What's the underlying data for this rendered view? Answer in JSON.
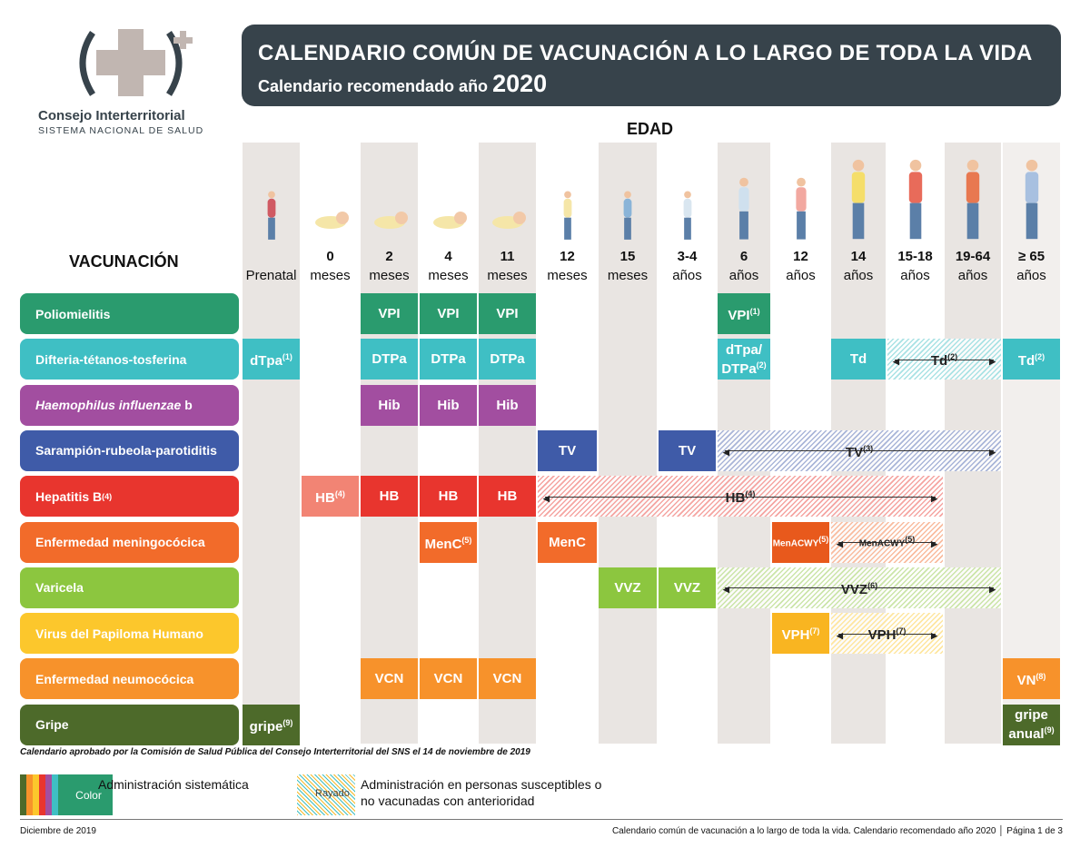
{
  "header": {
    "title": "CALENDARIO COMÚN DE VACUNACIÓN A LO LARGO DE TODA LA VIDA",
    "subtitle": "Calendario recomendado año",
    "year": "2020",
    "org_name": "Consejo Interterritorial",
    "org_sub": "SISTEMA NACIONAL DE SALUD"
  },
  "age_title": "EDAD",
  "vaccination_title": "VACUNACIÓN",
  "columns": [
    {
      "n": "",
      "u": "Prenatal"
    },
    {
      "n": "0",
      "u": "meses"
    },
    {
      "n": "2",
      "u": "meses"
    },
    {
      "n": "4",
      "u": "meses"
    },
    {
      "n": "11",
      "u": "meses"
    },
    {
      "n": "12",
      "u": "meses"
    },
    {
      "n": "15",
      "u": "meses"
    },
    {
      "n": "3-4",
      "u": "años"
    },
    {
      "n": "6",
      "u": "años"
    },
    {
      "n": "12",
      "u": "años"
    },
    {
      "n": "14",
      "u": "años"
    },
    {
      "n": "15-18",
      "u": "años"
    },
    {
      "n": "19-64",
      "u": "años"
    },
    {
      "n": "≥ 65",
      "u": "años"
    }
  ],
  "rows": [
    {
      "name": "Poliomielitis",
      "color": "#2a9b6e",
      "cells": [
        {
          "c": 2,
          "t": "VPI"
        },
        {
          "c": 3,
          "t": "VPI"
        },
        {
          "c": 4,
          "t": "VPI"
        },
        {
          "c": 8,
          "t": "VPI",
          "s": "(1)"
        }
      ]
    },
    {
      "name": "Difteria-tétanos-tosferina",
      "color": "#3fbfc4",
      "cells": [
        {
          "c": 0,
          "t": "dTpa",
          "s": "(1)"
        },
        {
          "c": 2,
          "t": "DTPa"
        },
        {
          "c": 3,
          "t": "DTPa"
        },
        {
          "c": 4,
          "t": "DTPa"
        },
        {
          "c": 8,
          "t": "dTpa/ DTPa",
          "s": "(2)"
        },
        {
          "c": 10,
          "t": "Td"
        },
        {
          "c": 11,
          "span": 2,
          "t": "Td",
          "s": "(2)",
          "striped": true
        },
        {
          "c": 13,
          "t": "Td",
          "s": "(2)"
        }
      ]
    },
    {
      "name": "Haemophilus influenzae",
      "name_suffix": "b",
      "italic": true,
      "color": "#a24ea0",
      "cells": [
        {
          "c": 2,
          "t": "Hib"
        },
        {
          "c": 3,
          "t": "Hib"
        },
        {
          "c": 4,
          "t": "Hib"
        }
      ]
    },
    {
      "name": "Sarampión-rubeola-parotiditis",
      "color": "#3f5ba8",
      "cells": [
        {
          "c": 5,
          "t": "TV"
        },
        {
          "c": 7,
          "t": "TV"
        },
        {
          "c": 8,
          "span": 5,
          "t": "TV",
          "s": "(3)",
          "striped": true
        }
      ]
    },
    {
      "name": "Hepatitis B",
      "name_sup": "(4)",
      "color": "#e8352e",
      "cells": [
        {
          "c": 1,
          "t": "HB",
          "s": "(4)",
          "color": "#f28474"
        },
        {
          "c": 2,
          "t": "HB"
        },
        {
          "c": 3,
          "t": "HB"
        },
        {
          "c": 4,
          "t": "HB"
        },
        {
          "c": 5,
          "span": 7,
          "t": "HB",
          "s": "(4)",
          "striped": true
        }
      ]
    },
    {
      "name": "Enfermedad meningocócica",
      "color": "#f26b2a",
      "cells": [
        {
          "c": 3,
          "t": "MenC",
          "s": "(5)"
        },
        {
          "c": 5,
          "t": "MenC"
        },
        {
          "c": 9,
          "t": "MenACWY",
          "s": "(5)",
          "small": true,
          "color": "#e8591c"
        },
        {
          "c": 10,
          "span": 2,
          "t": "MenACWY",
          "s": "(5)",
          "striped": true,
          "small": true
        }
      ]
    },
    {
      "name": "Varicela",
      "color": "#8cc63f",
      "cells": [
        {
          "c": 6,
          "t": "VVZ"
        },
        {
          "c": 7,
          "t": "VVZ"
        },
        {
          "c": 8,
          "span": 5,
          "t": "VVZ",
          "s": "(6)",
          "striped": true
        }
      ]
    },
    {
      "name": "Virus del Papiloma Humano",
      "color": "#fcc72c",
      "cells": [
        {
          "c": 9,
          "t": "VPH",
          "s": "(7)",
          "color": "#f9b521"
        },
        {
          "c": 10,
          "span": 2,
          "t": "VPH",
          "s": "(7)",
          "striped": true
        }
      ]
    },
    {
      "name": "Enfermedad neumocócica",
      "color": "#f7922b",
      "cells": [
        {
          "c": 2,
          "t": "VCN"
        },
        {
          "c": 3,
          "t": "VCN"
        },
        {
          "c": 4,
          "t": "VCN"
        },
        {
          "c": 13,
          "t": "VN",
          "s": "(8)"
        }
      ]
    },
    {
      "name": "Gripe",
      "color": "#4d6a2a",
      "cells": [
        {
          "c": 0,
          "t": "gripe",
          "s": "(9)"
        },
        {
          "c": 13,
          "t": "gripe anual",
          "s": "(9)"
        }
      ]
    }
  ],
  "approval_note": "Calendario aprobado por la Comisión de Salud Pública del Consejo Interterritorial del SNS el 14 de noviembre de 2019",
  "legend": {
    "color_label": "Color",
    "color_text": "Administración sistemática",
    "striped_label": "Rayado",
    "striped_text_1": "Administración en personas susceptibles o",
    "striped_text_2": "no vacunadas con anterioridad",
    "color_swatches": [
      "#4d6a2a",
      "#f7922b",
      "#fcc72c",
      "#e8352e",
      "#a24ea0",
      "#3fbfc4",
      "#2a9b6e"
    ]
  },
  "footer": {
    "date": "Diciembre de 2019",
    "doc": "Calendario común de vacunación a lo largo de toda la vida. Calendario recomendado año 2020 │ Página 1 de 3"
  }
}
